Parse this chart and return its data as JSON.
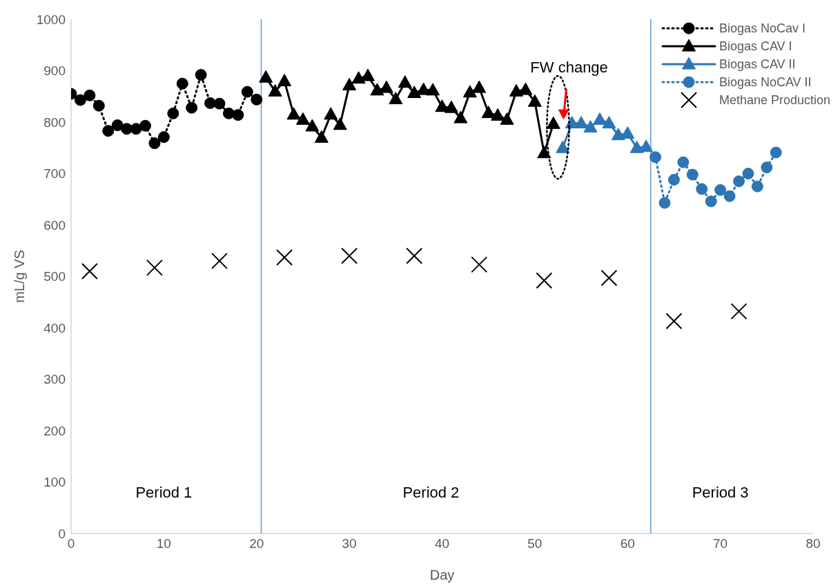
{
  "chart_data": {
    "type": "line",
    "xlabel": "Day",
    "ylabel": "mL/g VS",
    "xlim": [
      0,
      80
    ],
    "xticks": [
      0,
      10,
      20,
      30,
      40,
      50,
      60,
      70,
      80
    ],
    "ylim": [
      0,
      1000
    ],
    "yticks": [
      0,
      100,
      200,
      300,
      400,
      500,
      600,
      700,
      800,
      900,
      1000
    ],
    "grid": false,
    "legend": "top right",
    "series": [
      {
        "name": "Biogas NoCav I",
        "color": "#000000",
        "marker": "circle",
        "line_style": "dotted",
        "x": [
          0,
          1,
          2,
          3,
          4,
          5,
          6,
          7,
          8,
          9,
          10,
          11,
          12,
          13,
          14,
          15,
          16,
          17,
          18,
          19,
          20
        ],
        "values": [
          855,
          843,
          852,
          832,
          783,
          794,
          787,
          787,
          793,
          759,
          771,
          817,
          875,
          828,
          892,
          837,
          836,
          817,
          814,
          859,
          844
        ]
      },
      {
        "name": "Biogas CAV I",
        "color": "#000000",
        "marker": "triangle",
        "line_style": "solid",
        "x": [
          21,
          22,
          23,
          24,
          25,
          26,
          27,
          28,
          29,
          30,
          31,
          32,
          33,
          34,
          35,
          36,
          37,
          38,
          39,
          40,
          41,
          42,
          43,
          44,
          45,
          46,
          47,
          48,
          49,
          50,
          51,
          52
        ],
        "values": [
          887,
          860,
          880,
          815,
          805,
          792,
          770,
          815,
          795,
          872,
          885,
          890,
          862,
          867,
          845,
          877,
          857,
          863,
          862,
          830,
          828,
          808,
          858,
          867,
          818,
          813,
          805,
          860,
          863,
          840,
          740,
          797
        ]
      },
      {
        "name": "Biogas CAV II",
        "color": "#2e75b6",
        "marker": "triangle",
        "line_style": "solid",
        "x": [
          53,
          54,
          55,
          56,
          57,
          58,
          59,
          60,
          61,
          62
        ],
        "values": [
          750,
          798,
          798,
          790,
          805,
          798,
          775,
          778,
          750,
          752
        ]
      },
      {
        "name": "Biogas NoCAV II",
        "color": "#2e75b6",
        "marker": "circle",
        "line_style": "dotted",
        "x": [
          63,
          64,
          65,
          66,
          67,
          68,
          69,
          70,
          71,
          72,
          73,
          74,
          75,
          76
        ],
        "values": [
          732,
          643,
          688,
          722,
          698,
          670,
          646,
          668,
          656,
          685,
          700,
          675,
          712,
          741
        ]
      },
      {
        "name": "Methane Production",
        "type": "scatter",
        "color": "#000000",
        "marker": "cross",
        "x": [
          2,
          9,
          16,
          23,
          30,
          37,
          44,
          51,
          58,
          65,
          72
        ],
        "values": [
          510,
          517,
          530,
          537,
          540,
          540,
          523,
          492,
          497,
          413,
          432
        ]
      }
    ],
    "ref_lines": [
      {
        "axis": "x",
        "value": 20.5,
        "color": "#5b9bd5"
      },
      {
        "axis": "x",
        "value": 62.5,
        "color": "#5b9bd5"
      }
    ],
    "annotations": [
      "Period 1",
      "Period 2",
      "Period 3",
      "FW change"
    ]
  }
}
